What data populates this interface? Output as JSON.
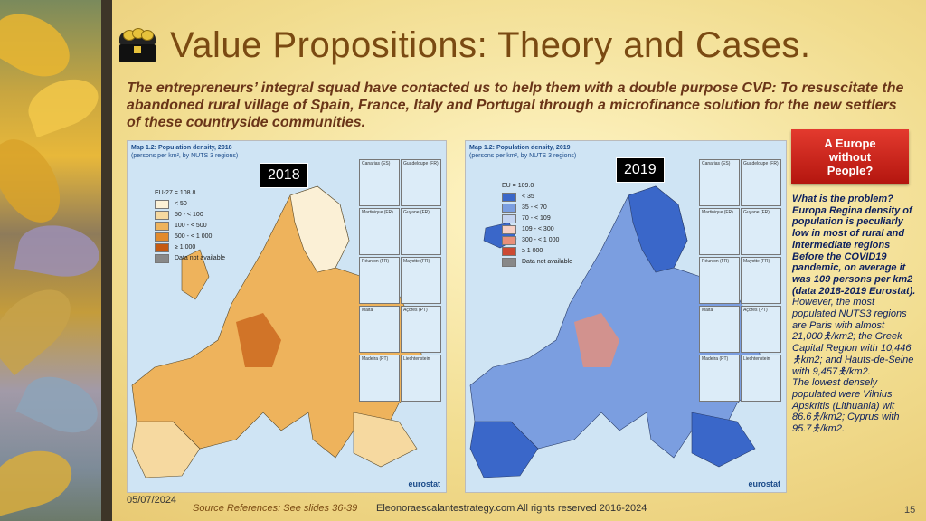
{
  "slide": {
    "title": "Value Propositions: Theory and Cases.",
    "subtitle": "The entrepreneurs’ integral squad have contacted us to help them with a double purpose CVP: To resuscitate the abandoned rural village of Spain, France, Italy and Portugal through a microfinance solution for the new settlers of these countryside communities."
  },
  "map_2018": {
    "year_label": "2018",
    "header_line1": "Map 1.2: Population density, 2018",
    "header_line2": "(persons per km², by NUTS 3 regions)",
    "legend": [
      {
        "label": "EU-27 = 108.8",
        "color": ""
      },
      {
        "label": "< 50",
        "color": "#fbf0d6"
      },
      {
        "label": "50 - < 100",
        "color": "#f6d9a0"
      },
      {
        "label": "100 - < 500",
        "color": "#eeb35c"
      },
      {
        "label": "500 - < 1 000",
        "color": "#e18a2c"
      },
      {
        "label": "≥ 1 000",
        "color": "#c55a12"
      },
      {
        "label": "Data not available",
        "color": "#888888"
      }
    ],
    "insets": [
      "Canarias (ES)",
      "Guadeloupe (FR)",
      "Martinique (FR)",
      "Guyane (FR)",
      "Réunion (FR)",
      "Mayotte (FR)",
      "Malta",
      "Açores (PT)",
      "Madeira (PT)",
      "Liechtenstein"
    ],
    "source": "eurostat"
  },
  "map_2019": {
    "year_label": "2019",
    "header_line1": "Map 1.2: Population density, 2019",
    "header_line2": "(persons per km², by NUTS 3 regions)",
    "legend": [
      {
        "label": "EU = 109.0",
        "color": ""
      },
      {
        "label": "< 35",
        "color": "#3a67c9"
      },
      {
        "label": "35 - < 70",
        "color": "#7b9ee0"
      },
      {
        "label": "70 - < 109",
        "color": "#c5d4f0"
      },
      {
        "label": "109 - < 300",
        "color": "#f6cfc4"
      },
      {
        "label": "300 - < 1 000",
        "color": "#e98f79"
      },
      {
        "label": "≥ 1 000",
        "color": "#cc4a33"
      },
      {
        "label": "Data not available",
        "color": "#888888"
      }
    ],
    "insets": [
      "Canarias (ES)",
      "Guadeloupe (FR)",
      "Martinique (FR)",
      "Guyane (FR)",
      "Réunion (FR)",
      "Mayotte (FR)",
      "Malta",
      "Açores (PT)",
      "Madeira (PT)",
      "Liechtenstein"
    ],
    "source": "eurostat"
  },
  "side": {
    "box_line1": "A Europe",
    "box_line2": "without",
    "box_line3": "People?",
    "bold_text": "What is the problem? Europa Regina density of population is peculiarly low in most of rural and intermediate regions Before the COVID19 pandemic, on average it was 109 persons per km2 (data 2018-2019 Eurostat).",
    "text_1": "However, the most populated NUTS3 regions are Paris with almost 21,000",
    "text_2": "/km2; the Greek Capital Region with 10,446",
    "text_3": "km2; and Hauts-de-Seine with 9,457",
    "text_4": "/km2.",
    "text_5": "The lowest  densely populated were Vilnius Apskritis (Lithuania) wit 86.6",
    "text_6": "/km2; Cyprus with 95.7",
    "text_7": "/km2."
  },
  "footer": {
    "date": "05/07/2024",
    "source": "Source References: See slides 36-39",
    "website": "Eleonoraescalantestrategy.com  All rights reserved 2016-2024",
    "page": "15"
  }
}
